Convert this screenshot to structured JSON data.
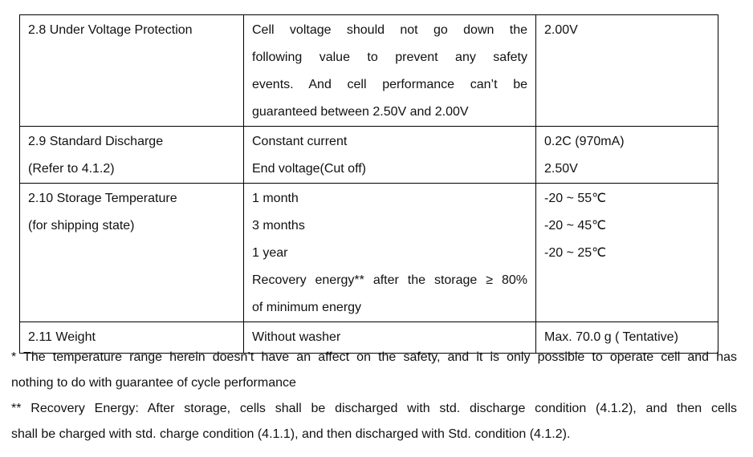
{
  "rows": [
    {
      "name": [
        "2.8 Under Voltage Protection"
      ],
      "condition": [
        "Cell voltage should not go down the",
        "following value to prevent any safety",
        "events. And cell performance can’t be",
        "guaranteed between 2.50V and 2.00V"
      ],
      "value": [
        "2.00V"
      ]
    },
    {
      "name": [
        "2.9 Standard Discharge",
        "(Refer to 4.1.2)"
      ],
      "condition": [
        "Constant current",
        "End voltage(Cut off)"
      ],
      "value": [
        "0.2C (970mA)",
        "2.50V"
      ]
    },
    {
      "name": [
        "2.10 Storage Temperature",
        "(for shipping state)"
      ],
      "condition": [
        "1 month",
        "3 months",
        "1 year",
        "Recovery energy** after the storage ≥ 80%",
        "of minimum energy"
      ],
      "value": [
        "-20 ~ 55℃",
        "-20 ~ 45℃",
        "-20 ~ 25℃"
      ]
    },
    {
      "name": [
        "2.11 Weight"
      ],
      "condition": [
        "Without washer"
      ],
      "value": [
        "Max. 70.0 g ( Tentative)"
      ]
    }
  ],
  "notes": [
    [
      "* The temperature range herein doesn’t have an affect on the safety, and it is only possible to operate cell and has",
      "nothing to do with guarantee of cycle performance"
    ],
    [
      "** Recovery Energy: After storage, cells shall be discharged with std. discharge condition (4.1.2), and then cells",
      "shall be charged with std. charge condition (4.1.1), and then discharged with Std. condition (4.1.2)."
    ]
  ]
}
